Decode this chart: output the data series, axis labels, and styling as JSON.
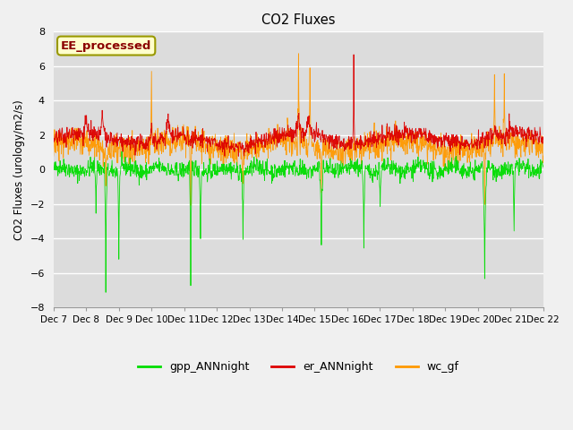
{
  "title": "CO2 Fluxes",
  "ylabel": "CO2 Fluxes (urology/m2/s)",
  "ylim": [
    -8,
    8
  ],
  "yticks": [
    -8,
    -6,
    -4,
    -2,
    0,
    2,
    4,
    6,
    8
  ],
  "axes_bg_color": "#dcdcdc",
  "fig_bg_color": "#f0f0f0",
  "annotation_text": "EE_processed",
  "annotation_color": "#8B0000",
  "annotation_bg": "#ffffcc",
  "annotation_border": "#999900",
  "colors": {
    "gpp": "#00dd00",
    "er": "#dd0000",
    "wc": "#ff9900"
  },
  "legend_labels": [
    "gpp_ANNnight",
    "er_ANNnight",
    "wc_gf"
  ],
  "n_points": 1500,
  "xtick_labels": [
    "Dec 7",
    "Dec 8",
    "Dec 9",
    "Dec 10",
    "Dec 11",
    "Dec 12",
    "Dec 13",
    "Dec 14",
    "Dec 15",
    "Dec 16",
    "Dec 17",
    "Dec 18",
    "Dec 19",
    "Dec 20",
    "Dec 21",
    "Dec 22"
  ],
  "seed": 42
}
